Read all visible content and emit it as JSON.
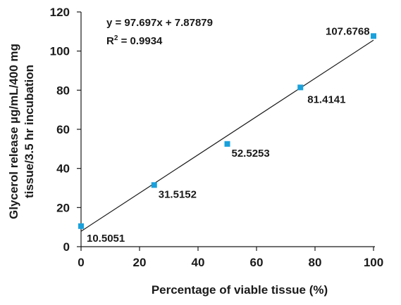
{
  "chart_data": {
    "type": "scatter",
    "xlabel": "Percentage of viable tissue (%)",
    "ylabel_lines": [
      "Glycerol release µg/mL/400 mg",
      "tissue/3.5 hr incubation"
    ],
    "xlim": [
      0,
      100
    ],
    "ylim": [
      0,
      120
    ],
    "x_ticks": [
      "0",
      "20",
      "40",
      "60",
      "80",
      "100"
    ],
    "y_ticks": [
      "0",
      "20",
      "40",
      "60",
      "80",
      "100",
      "120"
    ],
    "grid": false,
    "series": [
      {
        "x": [
          0,
          25,
          50,
          75,
          100
        ],
        "y": [
          10.5051,
          31.5152,
          52.5253,
          81.4141,
          107.6768
        ],
        "labels": [
          "10.5051",
          "31.5152",
          "52.5253",
          "81.4141",
          "107.6768"
        ],
        "color": "#1aa1db"
      }
    ],
    "trendline": {
      "slope": 0.97697,
      "intercept": 7.87879,
      "equation": "y = 97.697x + 7.87879",
      "r2_prefix": "R",
      "r2_sup": "2",
      "r2_value": " = 0.9934"
    }
  }
}
